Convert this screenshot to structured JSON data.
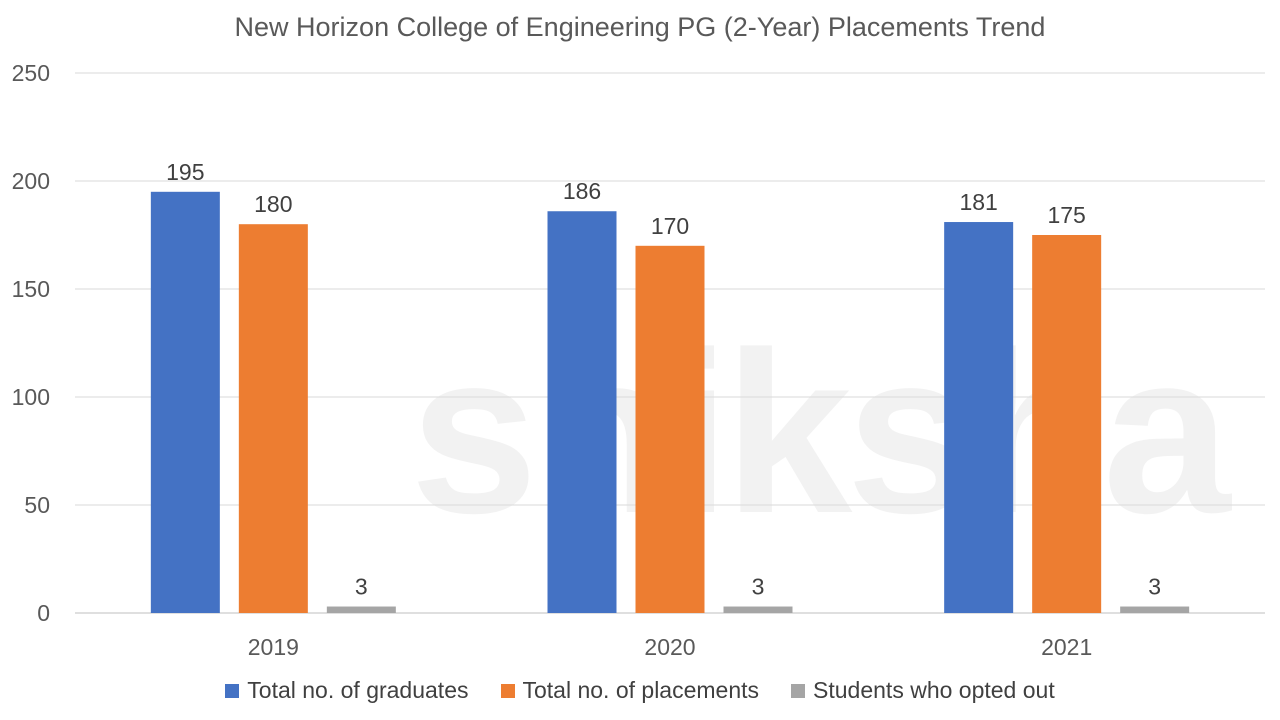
{
  "chart_data": {
    "type": "bar",
    "title": "New Horizon College of Engineering PG (2-Year) Placements Trend",
    "categories": [
      "2019",
      "2020",
      "2021"
    ],
    "series": [
      {
        "name": "Total no. of graduates",
        "values": [
          195,
          186,
          181
        ],
        "color": "#4472C4"
      },
      {
        "name": "Total no. of placements",
        "values": [
          180,
          170,
          175
        ],
        "color": "#ED7D31"
      },
      {
        "name": "Students who opted out",
        "values": [
          3,
          3,
          3
        ],
        "color": "#A5A5A5"
      }
    ],
    "ylim": [
      0,
      250
    ],
    "yticks": [
      0,
      50,
      100,
      150,
      200,
      250
    ],
    "grid": true,
    "legend": "bottom",
    "xlabel": "",
    "ylabel": ""
  },
  "watermark": "shiksha"
}
